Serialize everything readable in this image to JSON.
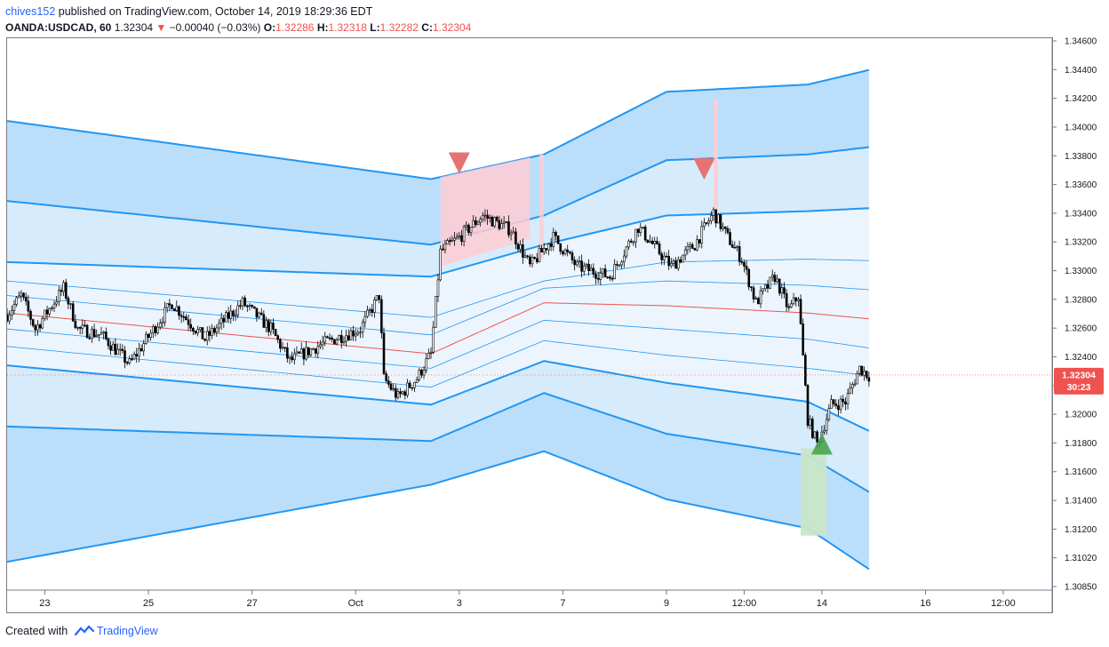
{
  "header": {
    "author": "chives152",
    "published": "published on TradingView.com, October 14, 2019 18:29:36 EDT",
    "symbol": "OANDA:USDCAD, 60",
    "last": "1.32304",
    "change": "−0.00040 (−0.03%)",
    "open_label": "O:",
    "open": "1.32286",
    "high_label": "H:",
    "high": "1.32318",
    "low_label": "L:",
    "low": "1.32282",
    "close_label": "C:",
    "close": "1.32304"
  },
  "footer": {
    "created": "Created with",
    "brand": "TradingView"
  },
  "price_tag": {
    "value": "1.32304",
    "countdown": "30:23",
    "color": "#ef5350"
  },
  "colors": {
    "band_outer": "#bbdefb",
    "band_mid": "#d6ebfb",
    "band_inner": "#ecf5fd",
    "band_line": "#2196f3",
    "mid_line": "#ef5350",
    "bull": "#26a69a",
    "bear": "#ef5350",
    "candle": "#000000"
  },
  "chart_data": {
    "type": "candlestick",
    "title": "",
    "ylim": [
      1.3085,
      1.346
    ],
    "x_ticks": [
      {
        "label": "23",
        "bar": 16
      },
      {
        "label": "25",
        "bar": 60
      },
      {
        "label": "27",
        "bar": 104
      },
      {
        "label": "Oct",
        "bar": 148
      },
      {
        "label": "3",
        "bar": 192
      },
      {
        "label": "7",
        "bar": 236
      },
      {
        "label": "9",
        "bar": 280
      },
      {
        "label": "12:00",
        "bar": 313
      },
      {
        "label": "14",
        "bar": 346
      },
      {
        "label": "16",
        "bar": 390
      },
      {
        "label": "12:00",
        "bar": 423
      }
    ],
    "y_ticks": [
      "1.34600",
      "1.34400",
      "1.34200",
      "1.34000",
      "1.33800",
      "1.33600",
      "1.33400",
      "1.33200",
      "1.33000",
      "1.32800",
      "1.32600",
      "1.32400",
      "1.32200",
      "1.32000",
      "1.31800",
      "1.31600",
      "1.31400",
      "1.31200",
      "1.31020",
      "1.30850"
    ],
    "anchors": [
      {
        "bar": 0,
        "price": 1.3272
      },
      {
        "bar": 6,
        "price": 1.3285
      },
      {
        "bar": 12,
        "price": 1.3262
      },
      {
        "bar": 24,
        "price": 1.329
      },
      {
        "bar": 30,
        "price": 1.3262
      },
      {
        "bar": 40,
        "price": 1.3258
      },
      {
        "bar": 52,
        "price": 1.3238
      },
      {
        "bar": 70,
        "price": 1.328
      },
      {
        "bar": 84,
        "price": 1.3255
      },
      {
        "bar": 100,
        "price": 1.328
      },
      {
        "bar": 112,
        "price": 1.3262
      },
      {
        "bar": 120,
        "price": 1.324
      },
      {
        "bar": 134,
        "price": 1.3252
      },
      {
        "bar": 150,
        "price": 1.3262
      },
      {
        "bar": 158,
        "price": 1.3285
      },
      {
        "bar": 160,
        "price": 1.3228
      },
      {
        "bar": 166,
        "price": 1.3215
      },
      {
        "bar": 174,
        "price": 1.3228
      },
      {
        "bar": 180,
        "price": 1.3245
      },
      {
        "bar": 184,
        "price": 1.3315
      },
      {
        "bar": 192,
        "price": 1.3325
      },
      {
        "bar": 202,
        "price": 1.334
      },
      {
        "bar": 214,
        "price": 1.333
      },
      {
        "bar": 222,
        "price": 1.3305
      },
      {
        "bar": 232,
        "price": 1.3325
      },
      {
        "bar": 242,
        "price": 1.3305
      },
      {
        "bar": 256,
        "price": 1.3298
      },
      {
        "bar": 268,
        "price": 1.3332
      },
      {
        "bar": 282,
        "price": 1.3305
      },
      {
        "bar": 292,
        "price": 1.332
      },
      {
        "bar": 300,
        "price": 1.3342
      },
      {
        "bar": 306,
        "price": 1.3325
      },
      {
        "bar": 312,
        "price": 1.331
      },
      {
        "bar": 318,
        "price": 1.328
      },
      {
        "bar": 326,
        "price": 1.3298
      },
      {
        "bar": 332,
        "price": 1.3275
      },
      {
        "bar": 336,
        "price": 1.3285
      },
      {
        "bar": 340,
        "price": 1.32
      },
      {
        "bar": 344,
        "price": 1.3183
      },
      {
        "bar": 350,
        "price": 1.321
      },
      {
        "bar": 356,
        "price": 1.3212
      },
      {
        "bar": 362,
        "price": 1.3235
      },
      {
        "bar": 366,
        "price": 1.323
      }
    ],
    "bands": {
      "x_bars": [
        0,
        180,
        228,
        280,
        340,
        366
      ],
      "upper_3": [
        1.3405,
        1.3365,
        1.3382,
        1.3425,
        1.343,
        1.344
      ],
      "upper_2": [
        1.335,
        1.332,
        1.334,
        1.3378,
        1.3382,
        1.3387
      ],
      "upper_1": [
        1.3308,
        1.3298,
        1.332,
        1.334,
        1.3343,
        1.3345
      ],
      "inner_up_2": [
        1.3295,
        1.327,
        1.3295,
        1.3308,
        1.331,
        1.3309
      ],
      "inner_up_1": [
        1.3285,
        1.3258,
        1.329,
        1.3295,
        1.3292,
        1.3289
      ],
      "center": [
        1.3273,
        1.3245,
        1.328,
        1.3278,
        1.3273,
        1.3269
      ],
      "inner_dn_1": [
        1.3262,
        1.3235,
        1.3268,
        1.3262,
        1.3255,
        1.3249
      ],
      "inner_dn_2": [
        1.325,
        1.3222,
        1.3254,
        1.3244,
        1.3235,
        1.323
      ],
      "lower_1": [
        1.3237,
        1.321,
        1.324,
        1.3225,
        1.3212,
        1.3192
      ],
      "lower_2": [
        1.3195,
        1.3185,
        1.3218,
        1.319,
        1.3175,
        1.315
      ],
      "lower_3": [
        1.3102,
        1.3155,
        1.3178,
        1.3145,
        1.3125,
        1.3097
      ]
    },
    "signals": [
      {
        "type": "sell",
        "bar": 192,
        "price": 1.3376
      },
      {
        "type": "sell",
        "bar": 296,
        "price": 1.3372
      },
      {
        "type": "buy",
        "bar": 346,
        "price": 1.3183
      }
    ],
    "last_price": 1.32304
  }
}
